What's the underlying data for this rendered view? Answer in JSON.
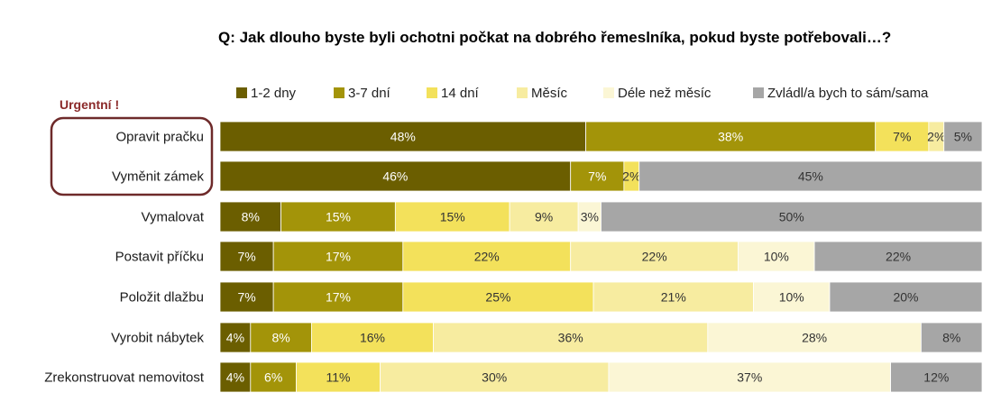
{
  "chart_data": {
    "type": "bar",
    "orientation": "horizontal",
    "stacked": true,
    "percent_stacked": true,
    "title": "Q: Jak dlouho byste byli ochotni počkat na dobrého řemeslníka, pokud byste potřebovali…?",
    "xlim": [
      0,
      100
    ],
    "grid": false,
    "legend_position": "top",
    "annotation": "Urgentní !",
    "categories": [
      "Opravit pračku",
      "Vyměnit zámek",
      "Vymalovat",
      "Postavit příčku",
      "Položit dlažbu",
      "Vyrobit nábytek",
      "Zrekonstruovat nemovitost"
    ],
    "series": [
      {
        "name": "1-2 dny",
        "color": "#6b5e00",
        "label_color": "#ffffff",
        "values": [
          48,
          46,
          8,
          7,
          7,
          4,
          4
        ]
      },
      {
        "name": "3-7 dní",
        "color": "#a39409",
        "label_color": "#ffffff",
        "values": [
          38,
          7,
          15,
          17,
          17,
          8,
          6
        ]
      },
      {
        "name": "14 dní",
        "color": "#f3e15b",
        "label_color": "#333333",
        "values": [
          7,
          2,
          15,
          22,
          25,
          16,
          11
        ]
      },
      {
        "name": "Měsíc",
        "color": "#f7eca0",
        "label_color": "#333333",
        "values": [
          2,
          0,
          9,
          22,
          21,
          36,
          30
        ]
      },
      {
        "name": "Déle než měsíc",
        "color": "#fbf6d5",
        "label_color": "#333333",
        "values": [
          0,
          0,
          3,
          10,
          10,
          28,
          37
        ]
      },
      {
        "name": "Zvládl/a bych to sám/sama",
        "color": "#a6a6a6",
        "label_color": "#333333",
        "values": [
          5,
          45,
          50,
          22,
          20,
          8,
          12
        ]
      }
    ],
    "labels": [
      [
        "48%",
        "38%",
        "7%",
        "2%",
        "",
        "5%"
      ],
      [
        "46%",
        "7%",
        "2%",
        "",
        "",
        "45%"
      ],
      [
        "8%",
        "15%",
        "15%",
        "9%",
        "3%",
        "50%"
      ],
      [
        "7%",
        "17%",
        "22%",
        "22%",
        "10%",
        "22%"
      ],
      [
        "7%",
        "17%",
        "25%",
        "21%",
        "10%",
        "20%"
      ],
      [
        "4%",
        "8%",
        "16%",
        "36%",
        "28%",
        "8%"
      ],
      [
        "4%",
        "6%",
        "11%",
        "30%",
        "37%",
        "12%"
      ]
    ],
    "highlight_box_color": "#6e2a2a"
  }
}
